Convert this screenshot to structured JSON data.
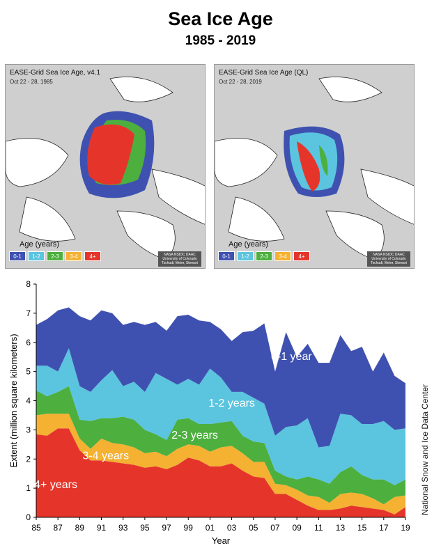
{
  "header": {
    "title": "Sea Ice Age",
    "subtitle": "1985 - 2019"
  },
  "maps": [
    {
      "title": "EASE-Grid Sea Ice Age, v4.1",
      "date": "Oct 22 - 28, 1985"
    },
    {
      "title": "EASE-Grid Sea Ice Age (QL)",
      "date": "Oct 22 - 28, 2019"
    }
  ],
  "map_legend": {
    "label": "Age (years)",
    "classes": [
      "0-1",
      "1-2",
      "2-3",
      "3-4",
      "4+"
    ],
    "colors": [
      "#3f51b0",
      "#5bc4df",
      "#4caf3e",
      "#f4b132",
      "#e5352b"
    ],
    "credit": "NASA NSIDC DAAC University of Colorado Tschudi, Meier, Stewart"
  },
  "side_credit": "National Snow and Ice Data Center",
  "chart_data": {
    "type": "area",
    "stacked": true,
    "xlabel": "Year",
    "ylabel": "Extent (million square kilometers)",
    "ylim": [
      0,
      8
    ],
    "yticks": [
      0,
      1,
      2,
      3,
      4,
      5,
      6,
      7,
      8
    ],
    "xticks": [
      "85",
      "87",
      "89",
      "91",
      "93",
      "95",
      "97",
      "99",
      "01",
      "03",
      "05",
      "07",
      "09",
      "11",
      "13",
      "15",
      "17",
      "19"
    ],
    "x": [
      1985,
      1986,
      1987,
      1988,
      1989,
      1990,
      1991,
      1992,
      1993,
      1994,
      1995,
      1996,
      1997,
      1998,
      1999,
      2000,
      2001,
      2002,
      2003,
      2004,
      2005,
      2006,
      2007,
      2008,
      2009,
      2010,
      2011,
      2012,
      2013,
      2014,
      2015,
      2016,
      2017,
      2018,
      2019
    ],
    "series": [
      {
        "name": "4+ years",
        "color": "#e5352b",
        "values": [
          2.85,
          2.8,
          3.05,
          3.05,
          2.3,
          1.95,
          1.95,
          1.9,
          1.85,
          1.8,
          1.7,
          1.75,
          1.65,
          1.8,
          2.05,
          1.95,
          1.75,
          1.75,
          1.85,
          1.6,
          1.4,
          1.35,
          0.8,
          0.8,
          0.6,
          0.4,
          0.25,
          0.25,
          0.3,
          0.4,
          0.35,
          0.3,
          0.25,
          0.1,
          0.35
        ]
      },
      {
        "name": "3-4 years",
        "color": "#f4b132",
        "values": [
          0.65,
          0.75,
          0.5,
          0.5,
          0.4,
          0.4,
          0.75,
          0.65,
          0.65,
          0.6,
          0.5,
          0.5,
          0.45,
          0.55,
          0.45,
          0.5,
          0.5,
          0.65,
          0.6,
          0.6,
          0.5,
          0.55,
          0.35,
          0.3,
          0.35,
          0.35,
          0.45,
          0.25,
          0.5,
          0.45,
          0.45,
          0.35,
          0.2,
          0.6,
          0.4
        ]
      },
      {
        "name": "2-3 years",
        "color": "#4caf3e",
        "values": [
          0.85,
          0.6,
          0.75,
          0.95,
          0.65,
          0.95,
          0.7,
          0.85,
          0.95,
          0.95,
          0.8,
          0.6,
          0.55,
          1.0,
          0.9,
          0.75,
          0.95,
          0.85,
          0.85,
          0.6,
          0.7,
          0.65,
          0.45,
          0.3,
          0.35,
          0.65,
          0.6,
          0.65,
          0.75,
          0.9,
          0.65,
          0.65,
          0.85,
          0.4,
          0.55
        ]
      },
      {
        "name": "1-2 years",
        "color": "#5bc4df",
        "values": [
          0.85,
          1.05,
          0.7,
          1.3,
          1.15,
          1.0,
          1.3,
          1.65,
          1.05,
          1.3,
          1.3,
          2.1,
          2.1,
          1.2,
          1.35,
          1.35,
          1.9,
          1.55,
          1.0,
          1.5,
          1.5,
          1.35,
          1.2,
          1.7,
          1.85,
          2.0,
          1.1,
          1.3,
          2.0,
          1.75,
          1.75,
          1.9,
          2.0,
          1.9,
          1.75
        ]
      },
      {
        "name": "0-1 year",
        "color": "#3f51b0",
        "values": [
          1.4,
          1.6,
          2.1,
          1.4,
          2.4,
          2.45,
          2.4,
          1.95,
          2.1,
          2.05,
          2.3,
          1.75,
          1.65,
          2.35,
          2.2,
          2.2,
          1.6,
          1.65,
          1.75,
          2.05,
          2.3,
          2.75,
          2.2,
          3.25,
          2.35,
          2.55,
          2.9,
          2.85,
          2.7,
          2.2,
          2.65,
          1.8,
          2.35,
          1.85,
          1.55
        ]
      }
    ],
    "annotations": [
      {
        "text": "0-1 year",
        "x": 2008.5,
        "y": 5.4,
        "color": "#ffffff"
      },
      {
        "text": "1-2 years",
        "x": 2003.0,
        "y": 3.8,
        "color": "#ffffff"
      },
      {
        "text": "2-3 years",
        "x": 1999.6,
        "y": 2.7,
        "color": "#ffffff"
      },
      {
        "text": "3-4 years",
        "x": 1991.4,
        "y": 2.0,
        "color": "#ffffff"
      },
      {
        "text": "4+ years",
        "x": 1986.8,
        "y": 1.0,
        "color": "#ffffff"
      }
    ]
  }
}
